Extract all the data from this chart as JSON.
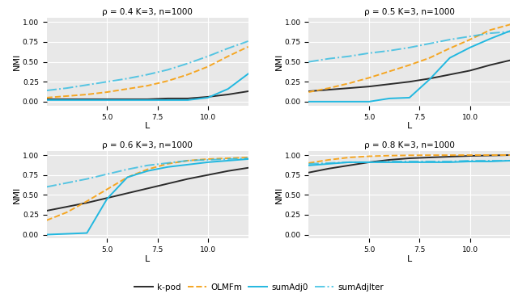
{
  "panels": [
    {
      "title": "ρ = 0.4 K=3, n=1000",
      "xlim": [
        2,
        12
      ],
      "ylim": [
        -0.05,
        1.05
      ],
      "xticks": [
        5.0,
        7.5,
        10.0
      ],
      "yticks": [
        0.0,
        0.25,
        0.5,
        0.75,
        1.0
      ],
      "series": {
        "kpod_y": [
          0.03,
          0.03,
          0.03,
          0.03,
          0.03,
          0.03,
          0.04,
          0.04,
          0.06,
          0.09,
          0.13
        ],
        "OLMFm_y": [
          0.05,
          0.07,
          0.09,
          0.12,
          0.16,
          0.2,
          0.26,
          0.34,
          0.44,
          0.57,
          0.69
        ],
        "sumAdj0_y": [
          0.02,
          0.02,
          0.02,
          0.02,
          0.02,
          0.02,
          0.02,
          0.02,
          0.05,
          0.16,
          0.35
        ],
        "sumAdjIter_y": [
          0.14,
          0.17,
          0.21,
          0.25,
          0.29,
          0.34,
          0.4,
          0.48,
          0.57,
          0.67,
          0.76
        ]
      }
    },
    {
      "title": "ρ = 0.5 K=3, n=1000",
      "xlim": [
        2,
        12
      ],
      "ylim": [
        -0.05,
        1.05
      ],
      "xticks": [
        5.0,
        7.5,
        10.0
      ],
      "yticks": [
        0.0,
        0.25,
        0.5,
        0.75,
        1.0
      ],
      "series": {
        "kpod_y": [
          0.13,
          0.15,
          0.17,
          0.19,
          0.22,
          0.25,
          0.29,
          0.34,
          0.39,
          0.46,
          0.52
        ],
        "OLMFm_y": [
          0.12,
          0.17,
          0.23,
          0.3,
          0.38,
          0.46,
          0.55,
          0.67,
          0.78,
          0.9,
          0.97
        ],
        "sumAdj0_y": [
          0.0,
          0.0,
          0.0,
          0.0,
          0.04,
          0.05,
          0.28,
          0.55,
          0.68,
          0.79,
          0.89
        ],
        "sumAdjIter_y": [
          0.5,
          0.54,
          0.57,
          0.61,
          0.64,
          0.68,
          0.73,
          0.78,
          0.82,
          0.86,
          0.88
        ]
      }
    },
    {
      "title": "ρ = 0.6 K=3, n=1000",
      "xlim": [
        2,
        12
      ],
      "ylim": [
        -0.05,
        1.05
      ],
      "xticks": [
        5.0,
        7.5,
        10.0
      ],
      "yticks": [
        0.0,
        0.25,
        0.5,
        0.75,
        1.0
      ],
      "series": {
        "kpod_y": [
          0.3,
          0.35,
          0.4,
          0.46,
          0.52,
          0.58,
          0.64,
          0.7,
          0.75,
          0.8,
          0.84
        ],
        "OLMFm_y": [
          0.18,
          0.28,
          0.42,
          0.57,
          0.72,
          0.82,
          0.89,
          0.93,
          0.95,
          0.96,
          0.97
        ],
        "sumAdj0_y": [
          0.0,
          0.01,
          0.02,
          0.45,
          0.72,
          0.8,
          0.85,
          0.88,
          0.91,
          0.93,
          0.95
        ],
        "sumAdjIter_y": [
          0.6,
          0.65,
          0.7,
          0.76,
          0.82,
          0.87,
          0.9,
          0.93,
          0.94,
          0.95,
          0.96
        ]
      }
    },
    {
      "title": "ρ = 0.8 K=3, n=1000",
      "xlim": [
        2,
        12
      ],
      "ylim": [
        -0.05,
        1.05
      ],
      "xticks": [
        5.0,
        7.5,
        10.0
      ],
      "yticks": [
        0.0,
        0.25,
        0.5,
        0.75,
        1.0
      ],
      "series": {
        "kpod_y": [
          0.78,
          0.83,
          0.87,
          0.91,
          0.94,
          0.96,
          0.97,
          0.98,
          0.99,
          0.995,
          1.0
        ],
        "OLMFm_y": [
          0.9,
          0.94,
          0.97,
          0.985,
          0.993,
          0.997,
          0.999,
          0.999,
          1.0,
          1.0,
          1.0
        ],
        "sumAdj0_y": [
          0.87,
          0.89,
          0.91,
          0.91,
          0.91,
          0.91,
          0.91,
          0.91,
          0.92,
          0.92,
          0.93
        ],
        "sumAdjIter_y": [
          0.89,
          0.9,
          0.91,
          0.91,
          0.92,
          0.92,
          0.92,
          0.92,
          0.93,
          0.93,
          0.93
        ]
      }
    }
  ],
  "x_values": [
    2,
    3,
    4,
    5,
    6,
    7,
    8,
    9,
    10,
    11,
    12
  ],
  "colors": {
    "kpod": "#2b2b2b",
    "OLMFm": "#f5a623",
    "sumAdj0": "#22b8e0",
    "sumAdjIter": "#22b8e0"
  },
  "bg_color": "#e8e8e8",
  "grid_color": "#ffffff"
}
